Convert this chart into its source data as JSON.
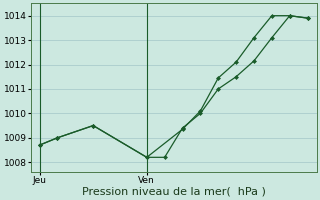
{
  "background_color": "#cce8e0",
  "grid_color": "#aacccc",
  "line_color": "#1a5c2a",
  "marker_color": "#1a5c2a",
  "ylabel_ticks": [
    1008,
    1009,
    1010,
    1011,
    1012,
    1013,
    1014
  ],
  "ylim": [
    1007.6,
    1014.5
  ],
  "xlim": [
    -0.5,
    15.5
  ],
  "xlabel": "Pression niveau de la mer(  hPa )",
  "xlabel_fontsize": 8,
  "tick_label_fontsize": 6.5,
  "day_ticks": [
    0,
    6
  ],
  "day_labels": [
    "Jeu",
    "Ven"
  ],
  "series1_x": [
    0,
    1,
    3,
    6,
    7,
    8,
    9,
    10,
    11,
    12,
    13,
    14,
    15
  ],
  "series1_y": [
    1008.7,
    1009.0,
    1009.5,
    1008.2,
    1008.2,
    1009.4,
    1010.0,
    1011.0,
    1011.5,
    1012.15,
    1013.1,
    1014.0,
    1013.9
  ],
  "series2_x": [
    0,
    1,
    3,
    6,
    8,
    9,
    10,
    11,
    12,
    13,
    14,
    15
  ],
  "series2_y": [
    1008.7,
    1009.0,
    1009.5,
    1008.2,
    1009.35,
    1010.1,
    1011.45,
    1012.1,
    1013.1,
    1014.0,
    1014.0,
    1013.9
  ],
  "vline_x": [
    0,
    6
  ],
  "figsize": [
    3.2,
    2.0
  ],
  "dpi": 100
}
